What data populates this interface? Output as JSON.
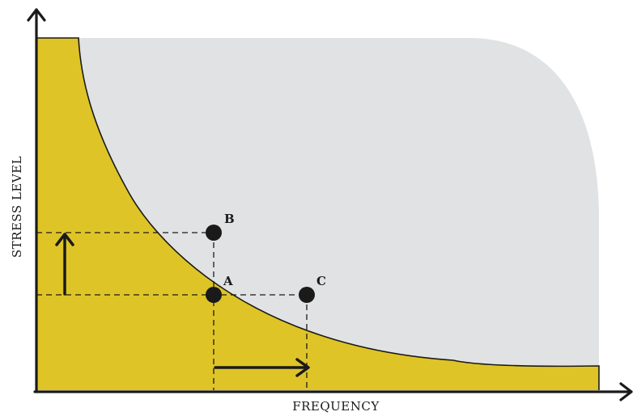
{
  "diagram": {
    "x_axis_label": "FREQUENCY",
    "y_axis_label": "STRESS LEVEL",
    "points": {
      "a": "A",
      "b": "B",
      "c": "C"
    },
    "colors": {
      "curve_fill": "#dfc427",
      "region_fill": "#e1e2e3",
      "ink": "#1a1a1a",
      "background": "#ffffff"
    }
  }
}
